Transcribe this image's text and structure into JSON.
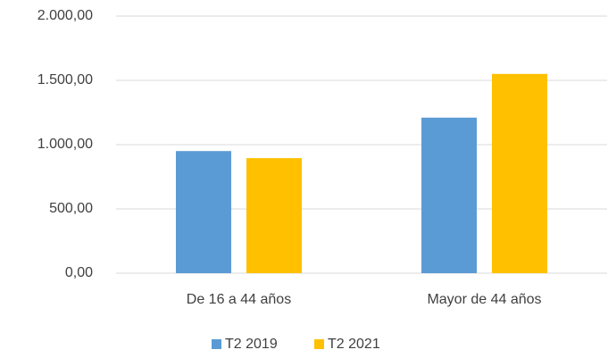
{
  "chart_data": {
    "type": "bar",
    "categories": [
      "De 16 a 44 años",
      "Mayor de 44 años"
    ],
    "series": [
      {
        "name": "T2 2019",
        "color": "#5b9bd5",
        "values": [
          950,
          1210
        ]
      },
      {
        "name": "T2 2021",
        "color": "#ffc000",
        "values": [
          895,
          1550
        ]
      }
    ],
    "ylim": [
      0,
      2000
    ],
    "yticks": [
      {
        "value": 0,
        "label": "0,00"
      },
      {
        "value": 500,
        "label": "500,00"
      },
      {
        "value": 1000,
        "label": "1.000,00"
      },
      {
        "value": 1500,
        "label": "1.500,00"
      },
      {
        "value": 2000,
        "label": "2.000,00"
      }
    ],
    "grid": true,
    "legend": "bottom"
  }
}
